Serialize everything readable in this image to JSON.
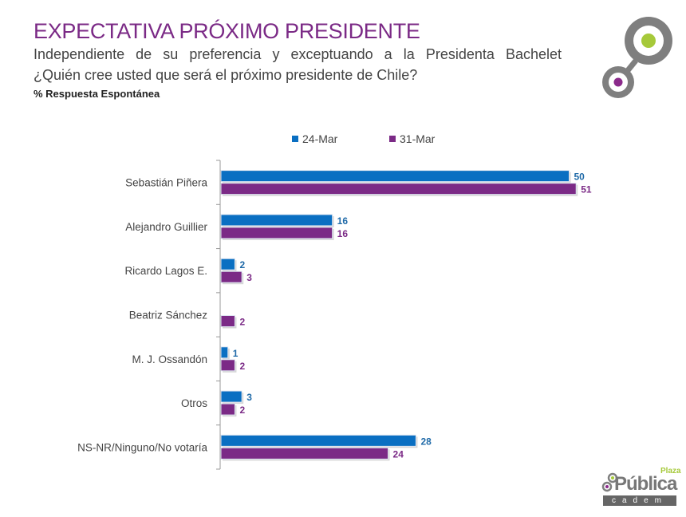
{
  "header": {
    "title": "EXPECTATIVA PRÓXIMO PRESIDENTE",
    "subtitle_line1": "Independiente de su preferencia y exceptuando a la Presidenta Bachelet",
    "subtitle_line2": "¿Quién cree usted que será el próximo presidente de Chile?",
    "note": "% Respuesta Espontánea"
  },
  "branding": {
    "logo_icon": "cadem-circles-logo",
    "word": "Pública",
    "plaza": "Plaza",
    "cadem": "cadem",
    "colors": {
      "gray": "#7f7f7f",
      "green": "#a6c93a",
      "purple": "#8b2a8b"
    }
  },
  "chart_data": {
    "type": "bar",
    "orientation": "horizontal",
    "title": "EXPECTATIVA PRÓXIMO PRESIDENTE",
    "xlabel": "",
    "ylabel": "",
    "legend_position": "top",
    "grid": false,
    "xlim": [
      0,
      55
    ],
    "categories": [
      "Sebastián Piñera",
      "Alejandro Guillier",
      "Ricardo Lagos E.",
      "Beatriz Sánchez",
      "M. J. Ossandón",
      "Otros",
      "NS-NR/Ninguno/No votaría"
    ],
    "series": [
      {
        "name": "24-Mar",
        "color": "#0a6fc2",
        "values": [
          50,
          16,
          2,
          null,
          1,
          3,
          28
        ]
      },
      {
        "name": "31-Mar",
        "color": "#7b2a86",
        "values": [
          51,
          16,
          3,
          2,
          2,
          2,
          24
        ]
      }
    ]
  }
}
